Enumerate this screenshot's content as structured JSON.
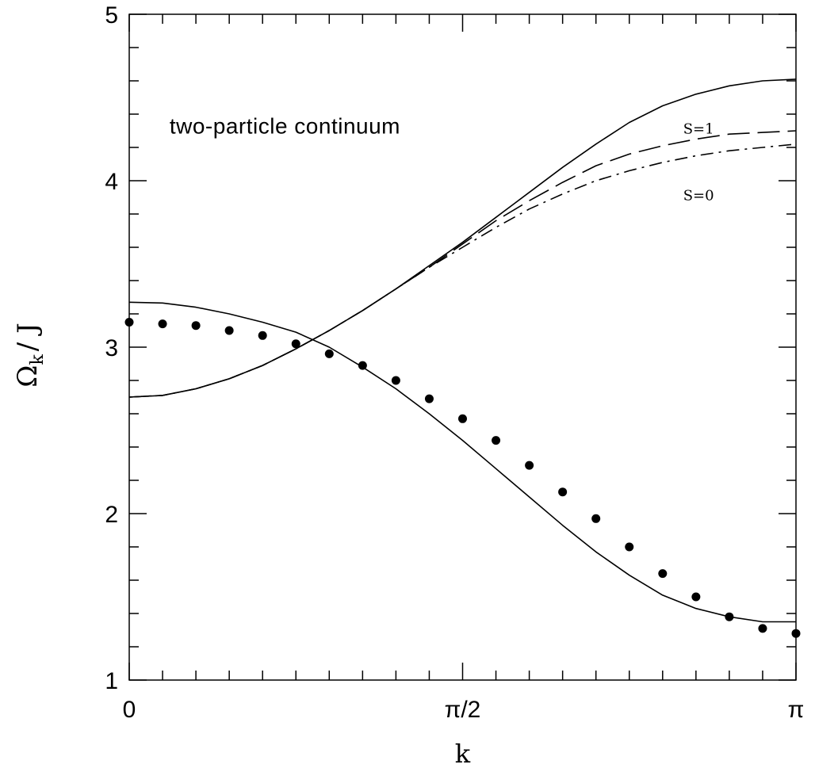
{
  "chart_data": {
    "type": "line",
    "xlabel": "k",
    "ylabel": "Ω",
    "ylabel_sub": "k",
    "ylabel_tail": "/ J",
    "xlim": [
      0,
      3.14159265
    ],
    "ylim": [
      1,
      5
    ],
    "x_ticks": [
      {
        "value": 0,
        "label": "0"
      },
      {
        "value": 1.5707963,
        "label": "π/2"
      },
      {
        "value": 3.14159265,
        "label": "π"
      }
    ],
    "y_ticks": [
      {
        "value": 1,
        "label": "1"
      },
      {
        "value": 2,
        "label": "2"
      },
      {
        "value": 3,
        "label": "3"
      },
      {
        "value": 4,
        "label": "4"
      },
      {
        "value": 5,
        "label": "5"
      }
    ],
    "x_minor_step": 0.15707963,
    "y_minor_step": 0.2,
    "annotations": [
      {
        "text": "two-particle continuum",
        "x": 0.19,
        "y": 4.33,
        "style": "large"
      },
      {
        "text": "S=1",
        "x": 2.61,
        "y": 4.33,
        "style": "small"
      },
      {
        "text": "S=0",
        "x": 2.61,
        "y": 3.93,
        "style": "small"
      }
    ],
    "series": [
      {
        "style": "solid",
        "x": [
          0,
          0.1571,
          0.3142,
          0.4712,
          0.6283,
          0.7854,
          0.9425,
          1.0996,
          1.2566,
          1.4137,
          1.5708,
          1.7279,
          1.885,
          2.042,
          2.1991,
          2.3562,
          2.5133,
          2.6704,
          2.8274,
          2.9845,
          3.1416
        ],
        "y": [
          3.27,
          3.265,
          3.24,
          3.2,
          3.15,
          3.09,
          3.0,
          2.88,
          2.75,
          2.6,
          2.44,
          2.27,
          2.1,
          1.93,
          1.77,
          1.63,
          1.51,
          1.43,
          1.38,
          1.35,
          1.35
        ]
      },
      {
        "style": "dots",
        "x": [
          0,
          0.1571,
          0.3142,
          0.4712,
          0.6283,
          0.7854,
          0.9425,
          1.0996,
          1.2566,
          1.4137,
          1.5708,
          1.7279,
          1.885,
          2.042,
          2.1991,
          2.3562,
          2.5133,
          2.6704,
          2.8274,
          2.9845,
          3.1416
        ],
        "y": [
          3.15,
          3.14,
          3.13,
          3.1,
          3.07,
          3.02,
          2.96,
          2.89,
          2.8,
          2.69,
          2.57,
          2.44,
          2.29,
          2.13,
          1.97,
          1.8,
          1.64,
          1.5,
          1.38,
          1.31,
          1.28
        ]
      },
      {
        "style": "solid",
        "x": [
          0,
          0.1571,
          0.3142,
          0.4712,
          0.6283,
          0.7854,
          0.9425,
          1.0996,
          1.2566,
          1.4137,
          1.5708,
          1.7279,
          1.885,
          2.042,
          2.1991,
          2.3562,
          2.5133,
          2.6704,
          2.8274,
          2.9845,
          3.1416
        ],
        "y": [
          2.7,
          2.71,
          2.75,
          2.81,
          2.89,
          2.99,
          3.1,
          3.22,
          3.35,
          3.49,
          3.63,
          3.78,
          3.93,
          4.08,
          4.22,
          4.35,
          4.45,
          4.52,
          4.57,
          4.6,
          4.61
        ]
      },
      {
        "style": "long-dash",
        "label": "S=1",
        "x": [
          0,
          0.1571,
          0.3142,
          0.4712,
          0.6283,
          0.7854,
          0.9425,
          1.0996,
          1.2566,
          1.4137,
          1.5708,
          1.7279,
          1.885,
          2.042,
          2.1991,
          2.3562,
          2.5133,
          2.6704,
          2.8274,
          2.9845,
          3.1416
        ],
        "y": [
          2.7,
          2.71,
          2.75,
          2.81,
          2.89,
          2.99,
          3.1,
          3.22,
          3.35,
          3.48,
          3.62,
          3.76,
          3.88,
          3.99,
          4.09,
          4.16,
          4.21,
          4.25,
          4.28,
          4.29,
          4.3
        ]
      },
      {
        "style": "dash-dot",
        "label": "S=0",
        "x": [
          0,
          0.1571,
          0.3142,
          0.4712,
          0.6283,
          0.7854,
          0.9425,
          1.0996,
          1.2566,
          1.4137,
          1.5708,
          1.7279,
          1.885,
          2.042,
          2.1991,
          2.3562,
          2.5133,
          2.6704,
          2.8274,
          2.9845,
          3.1416
        ],
        "y": [
          2.7,
          2.71,
          2.75,
          2.81,
          2.89,
          2.99,
          3.1,
          3.22,
          3.35,
          3.48,
          3.6,
          3.72,
          3.83,
          3.92,
          4.0,
          4.06,
          4.11,
          4.15,
          4.18,
          4.2,
          4.22
        ]
      }
    ]
  }
}
